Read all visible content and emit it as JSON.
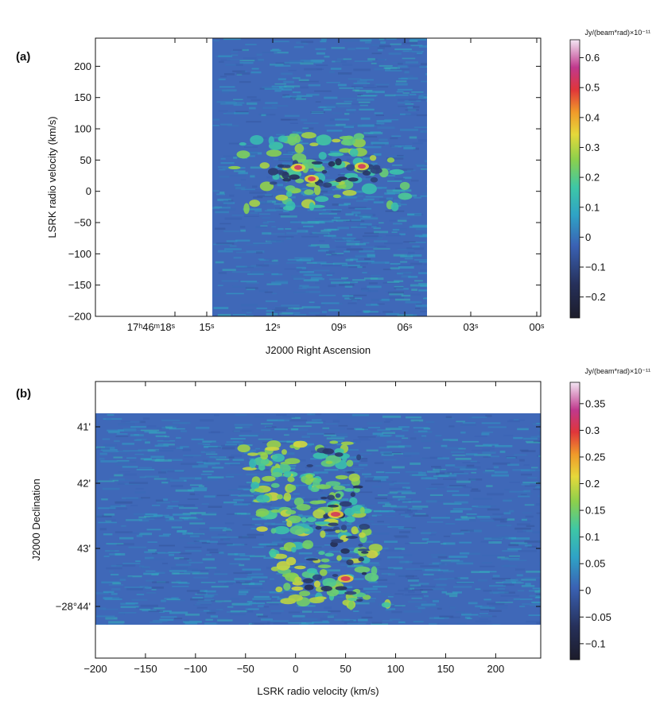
{
  "chart_data": [
    {
      "type": "heatmap",
      "panel_label": "(a)",
      "xlabel": "J2000 Right Ascension",
      "ylabel": "LSRK radio velocity  (km/s)",
      "x_ticks": [
        "17ʰ46ᵐ18ˢ",
        "15ˢ",
        "12ˢ",
        "09ˢ",
        "06ˢ",
        "03ˢ",
        "00ˢ"
      ],
      "y_ticks": [
        200,
        150,
        100,
        50,
        0,
        -50,
        -100,
        -150,
        -200
      ],
      "ylim": [
        -200,
        245
      ],
      "colorbar": {
        "unit": "Jy/(beam*rad)×10⁻¹¹",
        "ticks": [
          0.6,
          0.5,
          0.4,
          0.3,
          0.2,
          0.1,
          0,
          -0.1,
          -0.2
        ],
        "range": [
          -0.27,
          0.66
        ]
      },
      "emission_peaks": [
        {
          "ra": "09ˢ",
          "velocity": 20,
          "value": 0.45
        },
        {
          "ra": "10ˢ",
          "velocity": 38,
          "value": 0.4
        },
        {
          "ra": "07.5ˢ",
          "velocity": 40,
          "value": 0.42
        }
      ]
    },
    {
      "type": "heatmap",
      "panel_label": "(b)",
      "xlabel": "LSRK radio velocity  (km/s)",
      "ylabel": "J2000 Declination",
      "x_ticks": [
        -200,
        -150,
        -100,
        -50,
        0,
        50,
        100,
        150,
        200
      ],
      "xlim": [
        -200,
        245
      ],
      "y_ticks": [
        "41'",
        "42'",
        "43'",
        "−28°44'"
      ],
      "colorbar": {
        "unit": "Jy/(beam*rad)×10⁻¹¹",
        "ticks": [
          0.35,
          0.3,
          0.25,
          0.2,
          0.15,
          0.1,
          0.05,
          0,
          -0.05,
          -0.1
        ],
        "range": [
          -0.13,
          0.39
        ]
      },
      "emission_peaks": [
        {
          "velocity": 40,
          "dec": "42.5'",
          "value": 0.25
        },
        {
          "velocity": 50,
          "dec": "43.6'",
          "value": 0.28
        }
      ]
    }
  ]
}
